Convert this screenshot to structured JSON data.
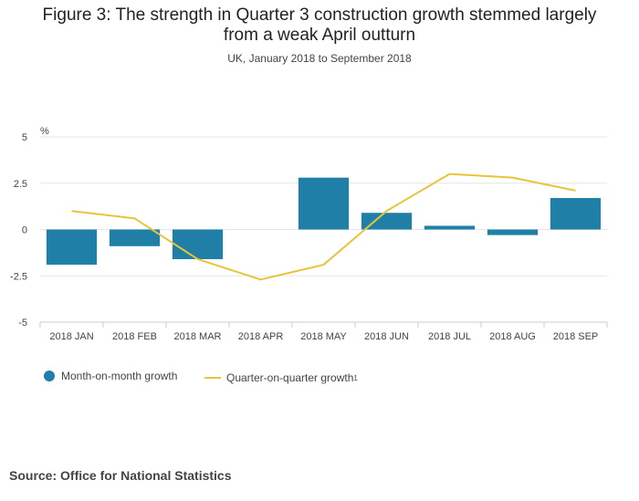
{
  "title_line1": "Figure 3: The strength in Quarter 3 construction growth stemmed largely",
  "title_line2": "from a weak April outturn",
  "subtitle": "UK, January 2018 to September 2018",
  "source": "Source: Office for National Statistics",
  "colors": {
    "bar": "#1f7fa6",
    "line": "#e7c43a",
    "grid": "#e6e6e6",
    "axis": "#cccccc"
  },
  "legend": {
    "bar_label": "Month-on-month growth",
    "line_label": "Quarter-on-quarter growth",
    "line_sup": "1"
  },
  "chart_data": {
    "type": "bar",
    "title": "Figure 3: The strength in Quarter 3 construction growth stemmed largely from a weak April outturn",
    "subtitle": "UK, January 2018 to September 2018",
    "ylabel": "%",
    "ylim": [
      -5,
      5
    ],
    "yticks": [
      "5",
      "2.5",
      "0",
      "-2.5",
      "-5"
    ],
    "ytick_values": [
      5,
      2.5,
      0,
      -2.5,
      -5
    ],
    "grid": true,
    "legend_position": "bottom-left",
    "categories": [
      "2018 JAN",
      "2018 FEB",
      "2018 MAR",
      "2018 APR",
      "2018 MAY",
      "2018 JUN",
      "2018 JUL",
      "2018 AUG",
      "2018 SEP"
    ],
    "series": [
      {
        "name": "Month-on-month growth",
        "type": "bar",
        "values": [
          -1.9,
          -0.9,
          -1.6,
          0.0,
          2.8,
          0.9,
          0.2,
          -0.3,
          1.7
        ]
      },
      {
        "name": "Quarter-on-quarter growth",
        "type": "line",
        "values": [
          1.0,
          0.6,
          -1.6,
          -2.7,
          -1.9,
          1.0,
          3.0,
          2.8,
          2.1
        ]
      }
    ]
  }
}
